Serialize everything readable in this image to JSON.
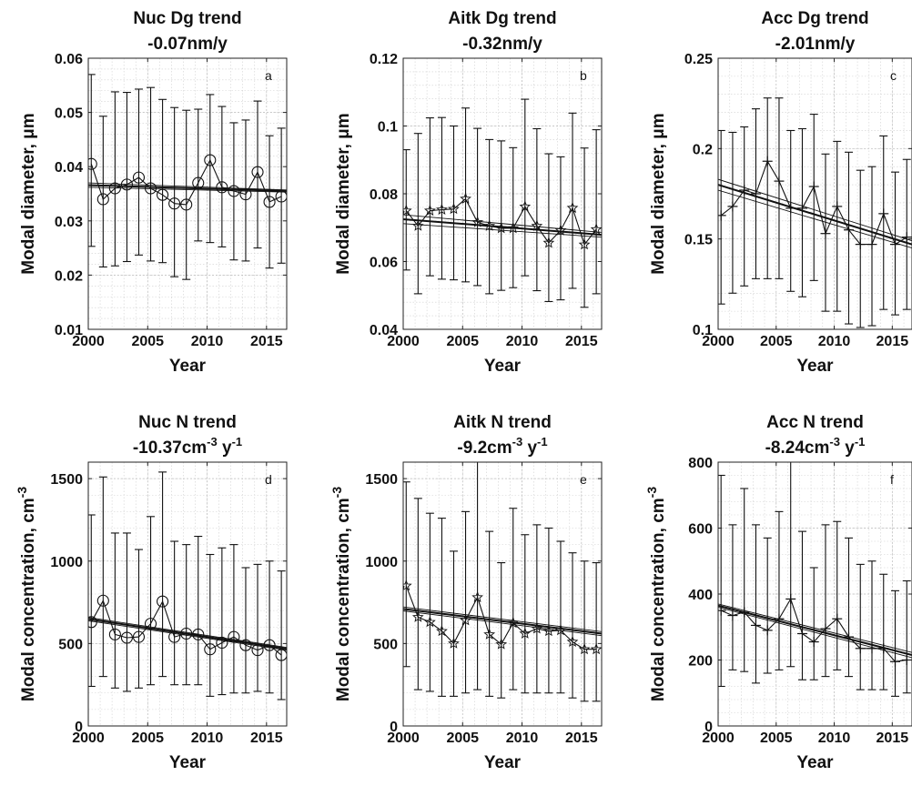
{
  "chart_data": [
    {
      "panel": "a",
      "type": "line",
      "title": "Nuc Dg trend",
      "trend_text": "-0.07nm/y",
      "xlabel": "Year",
      "ylabel": "Modal diameter, μm",
      "xlim": [
        2000,
        2016.7
      ],
      "ylim": [
        0.01,
        0.06
      ],
      "xticks": [
        2000,
        2005,
        2010,
        2015
      ],
      "yticks": [
        0.01,
        0.02,
        0.03,
        0.04,
        0.05,
        0.06
      ],
      "ytick_labels": [
        "0.01",
        "0.02",
        "0.03",
        "0.04",
        "0.05",
        "0.06"
      ],
      "marker": "circle",
      "grid": true,
      "x": [
        2000.25,
        2001.25,
        2002.25,
        2003.25,
        2004.25,
        2005.25,
        2006.25,
        2007.25,
        2008.25,
        2009.25,
        2010.25,
        2011.25,
        2012.25,
        2013.25,
        2014.25,
        2015.25,
        2016.25
      ],
      "values": [
        0.0405,
        0.034,
        0.036,
        0.0367,
        0.038,
        0.036,
        0.0348,
        0.0332,
        0.033,
        0.037,
        0.0412,
        0.0362,
        0.0355,
        0.0349,
        0.039,
        0.0335,
        0.0345
      ],
      "err_upper": [
        0.057,
        0.0493,
        0.0538,
        0.0537,
        0.0543,
        0.0546,
        0.0524,
        0.0509,
        0.0504,
        0.0506,
        0.0533,
        0.0511,
        0.0481,
        0.0486,
        0.0521,
        0.0457,
        0.0471
      ],
      "err_lower": [
        0.0253,
        0.0215,
        0.0217,
        0.0225,
        0.0237,
        0.0226,
        0.0223,
        0.0197,
        0.0192,
        0.0263,
        0.026,
        0.0252,
        0.0228,
        0.0226,
        0.025,
        0.0213,
        0.0222
      ],
      "trend": [
        0.0366,
        0.0355
      ],
      "trend_upper": [
        0.037,
        0.0357
      ],
      "trend_lower": [
        0.0362,
        0.0353
      ]
    },
    {
      "panel": "b",
      "type": "line",
      "title": "Aitk Dg trend",
      "trend_text": "-0.32nm/y",
      "xlabel": "Year",
      "ylabel": "Modal diameter, μm",
      "xlim": [
        2000,
        2016.7
      ],
      "ylim": [
        0.04,
        0.12
      ],
      "xticks": [
        2000,
        2005,
        2010,
        2015
      ],
      "yticks": [
        0.04,
        0.06,
        0.08,
        0.1,
        0.12
      ],
      "ytick_labels": [
        "0.04",
        "0.06",
        "0.08",
        "0.1",
        "0.12"
      ],
      "marker": "star",
      "grid": true,
      "x": [
        2000.25,
        2001.25,
        2002.25,
        2003.25,
        2004.25,
        2005.25,
        2006.25,
        2007.25,
        2008.25,
        2009.25,
        2010.25,
        2011.25,
        2012.25,
        2013.25,
        2014.25,
        2015.25,
        2016.25
      ],
      "values": [
        0.075,
        0.0705,
        0.075,
        0.0753,
        0.0755,
        0.0785,
        0.0716,
        0.0705,
        0.0698,
        0.0698,
        0.0762,
        0.0705,
        0.0655,
        0.0692,
        0.0758,
        0.065,
        0.0695
      ],
      "err_upper": [
        0.093,
        0.0978,
        0.1024,
        0.1025,
        0.1,
        0.1053,
        0.0993,
        0.096,
        0.0956,
        0.0936,
        0.1079,
        0.0992,
        0.0918,
        0.0909,
        0.1038,
        0.0935,
        0.0989
      ],
      "err_lower": [
        0.0575,
        0.0505,
        0.0558,
        0.0548,
        0.0546,
        0.054,
        0.0529,
        0.0505,
        0.0515,
        0.0523,
        0.0558,
        0.0514,
        0.0482,
        0.0487,
        0.0521,
        0.0465,
        0.0505
      ],
      "trend": [
        0.0725,
        0.0679
      ],
      "trend_upper": [
        0.0738,
        0.0686
      ],
      "trend_lower": [
        0.0712,
        0.0672
      ]
    },
    {
      "panel": "c",
      "type": "line",
      "title": "Acc Dg trend",
      "trend_text": "-2.01nm/y",
      "xlabel": "Year",
      "ylabel": "Modal diameter, μm",
      "xlim": [
        2000,
        2016.7
      ],
      "ylim": [
        0.1,
        0.25
      ],
      "xticks": [
        2000,
        2005,
        2010,
        2015
      ],
      "yticks": [
        0.1,
        0.15,
        0.2,
        0.25
      ],
      "ytick_labels": [
        "0.1",
        "0.15",
        "0.2",
        "0.25"
      ],
      "marker": "plus",
      "grid": true,
      "x": [
        2000.25,
        2001.25,
        2002.25,
        2003.25,
        2004.25,
        2005.25,
        2006.25,
        2007.25,
        2008.25,
        2009.25,
        2010.25,
        2011.25,
        2012.25,
        2013.25,
        2014.25,
        2015.25,
        2016.25
      ],
      "values": [
        0.163,
        0.168,
        0.177,
        0.175,
        0.193,
        0.182,
        0.167,
        0.167,
        0.179,
        0.153,
        0.168,
        0.155,
        0.147,
        0.147,
        0.164,
        0.147,
        0.151
      ],
      "err_upper": [
        0.21,
        0.209,
        0.212,
        0.222,
        0.228,
        0.228,
        0.21,
        0.211,
        0.219,
        0.197,
        0.204,
        0.198,
        0.188,
        0.19,
        0.207,
        0.187,
        0.194
      ],
      "err_lower": [
        0.114,
        0.12,
        0.124,
        0.128,
        0.128,
        0.128,
        0.121,
        0.118,
        0.127,
        0.11,
        0.11,
        0.103,
        0.101,
        0.102,
        0.111,
        0.108,
        0.111
      ],
      "trend": [
        0.18,
        0.147
      ],
      "trend_upper": [
        0.183,
        0.149
      ],
      "trend_lower": [
        0.177,
        0.145
      ]
    },
    {
      "panel": "d",
      "type": "line",
      "title": "Nuc N trend",
      "trend_text": "-10.37cm",
      "trend_sup1": "-3",
      "trend_mid": " y",
      "trend_sup2": "-1",
      "xlabel": "Year",
      "ylabel": "Modal concentration, cm",
      "ylabel_sup": "-3",
      "xlim": [
        2000,
        2016.7
      ],
      "ylim": [
        0,
        1600
      ],
      "xticks": [
        2000,
        2005,
        2010,
        2015
      ],
      "yticks": [
        0,
        500,
        1000,
        1500
      ],
      "ytick_labels": [
        "0",
        "500",
        "1000",
        "1500"
      ],
      "marker": "circle",
      "grid": true,
      "x": [
        2000.25,
        2001.25,
        2002.25,
        2003.25,
        2004.25,
        2005.25,
        2006.25,
        2007.25,
        2008.25,
        2009.25,
        2010.25,
        2011.25,
        2012.25,
        2013.25,
        2014.25,
        2015.25,
        2016.25
      ],
      "values": [
        630,
        760,
        555,
        535,
        540,
        620,
        755,
        540,
        560,
        555,
        465,
        505,
        540,
        490,
        460,
        490,
        430
      ],
      "err_upper": [
        1280,
        1510,
        1170,
        1170,
        1070,
        1270,
        1540,
        1120,
        1100,
        1150,
        1040,
        1080,
        1100,
        960,
        980,
        1000,
        940
      ],
      "err_lower": [
        240,
        300,
        230,
        210,
        230,
        250,
        300,
        250,
        250,
        250,
        180,
        190,
        200,
        200,
        210,
        200,
        160
      ],
      "trend": [
        648,
        468
      ],
      "trend_upper": [
        658,
        476
      ],
      "trend_lower": [
        638,
        460
      ]
    },
    {
      "panel": "e",
      "type": "line",
      "title": "Aitk N trend",
      "trend_text": "-9.2cm",
      "trend_sup1": "-3",
      "trend_mid": " y",
      "trend_sup2": "-1",
      "xlabel": "Year",
      "ylabel": "Modal concentration, cm",
      "ylabel_sup": "-3",
      "xlim": [
        2000,
        2016.7
      ],
      "ylim": [
        0,
        1600
      ],
      "xticks": [
        2000,
        2005,
        2010,
        2015
      ],
      "yticks": [
        0,
        500,
        1000,
        1500
      ],
      "ytick_labels": [
        "0",
        "500",
        "1000",
        "1500"
      ],
      "marker": "star",
      "grid": true,
      "x": [
        2000.25,
        2001.25,
        2002.25,
        2003.25,
        2004.25,
        2005.25,
        2006.25,
        2007.25,
        2008.25,
        2009.25,
        2010.25,
        2011.25,
        2012.25,
        2013.25,
        2014.25,
        2015.25,
        2016.25
      ],
      "values": [
        850,
        660,
        630,
        575,
        500,
        640,
        780,
        555,
        495,
        625,
        560,
        590,
        575,
        580,
        510,
        465,
        465
      ],
      "err_upper": [
        1480,
        1380,
        1290,
        1260,
        1060,
        1300,
        1680,
        1180,
        990,
        1320,
        1160,
        1220,
        1200,
        1120,
        1050,
        1000,
        990
      ],
      "err_lower": [
        360,
        220,
        210,
        180,
        180,
        200,
        220,
        180,
        170,
        220,
        200,
        200,
        200,
        200,
        170,
        150,
        150
      ],
      "trend": [
        710,
        560
      ],
      "trend_upper": [
        722,
        572
      ],
      "trend_lower": [
        698,
        548
      ]
    },
    {
      "panel": "f",
      "type": "line",
      "title": "Acc N trend",
      "trend_text": "-8.24cm",
      "trend_sup1": "-3",
      "trend_mid": " y",
      "trend_sup2": "-1",
      "xlabel": "Year",
      "ylabel": "Modal concentration, cm",
      "ylabel_sup": "-3",
      "xlim": [
        2000,
        2016.7
      ],
      "ylim": [
        0,
        800
      ],
      "xticks": [
        2000,
        2005,
        2010,
        2015
      ],
      "yticks": [
        0,
        200,
        400,
        600,
        800
      ],
      "ytick_labels": [
        "0",
        "200",
        "400",
        "600",
        "800"
      ],
      "marker": "plus",
      "grid": true,
      "x": [
        2000.25,
        2001.25,
        2002.25,
        2003.25,
        2004.25,
        2005.25,
        2006.25,
        2007.25,
        2008.25,
        2009.25,
        2010.25,
        2011.25,
        2012.25,
        2013.25,
        2014.25,
        2015.25,
        2016.25
      ],
      "values": [
        350,
        335,
        345,
        305,
        290,
        325,
        385,
        280,
        255,
        295,
        325,
        270,
        235,
        235,
        235,
        195,
        200
      ],
      "err_upper": [
        760,
        610,
        720,
        610,
        570,
        650,
        880,
        590,
        480,
        610,
        620,
        570,
        490,
        500,
        460,
        410,
        440
      ],
      "err_lower": [
        120,
        170,
        165,
        130,
        160,
        170,
        180,
        140,
        140,
        150,
        170,
        150,
        110,
        110,
        110,
        90,
        100
      ],
      "trend": [
        365,
        215
      ],
      "trend_upper": [
        370,
        223
      ],
      "trend_lower": [
        360,
        207
      ]
    }
  ]
}
